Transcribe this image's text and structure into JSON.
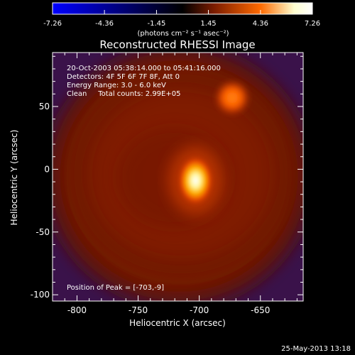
{
  "chart_data": {
    "type": "heatmap",
    "title": "Reconstructed RHESSI Image",
    "xlabel": "Heliocentric X (arcsec)",
    "ylabel": "Heliocentric Y (arcsec)",
    "xlim": [
      -820,
      -615
    ],
    "ylim": [
      -105,
      93
    ],
    "xticks": [
      -800,
      -750,
      -700,
      -650
    ],
    "yticks": [
      -100,
      -50,
      0,
      50
    ],
    "annotations": [
      "20-Oct-2003 05:38:14.000 to 05:41:16.000",
      "Detectors: 4F 5F 6F 7F 8F, Att 0",
      "Energy Range: 3.0 - 6.0 keV",
      "Clean     Total counts: 2.99E+05"
    ],
    "peak_label": "Position of Peak = [-703,-9]",
    "peak": [
      -703,
      -9
    ],
    "secondary_source": [
      -673,
      57
    ],
    "colorbar": {
      "min": -7.26,
      "max": 7.26,
      "ticks": [
        "-7.26",
        "-4.36",
        "-1.45",
        "1.45",
        "4.36",
        "7.26"
      ],
      "unit_label": "(photons cm⁻² s⁻¹ asec⁻²)",
      "colormap": [
        "#0000ff",
        "#000000",
        "#7a1c00",
        "#ff6a00",
        "#ffffd0",
        "#ffffff"
      ]
    },
    "grid": false
  },
  "footer": {
    "timestamp": "25-May-2013 13:18"
  }
}
